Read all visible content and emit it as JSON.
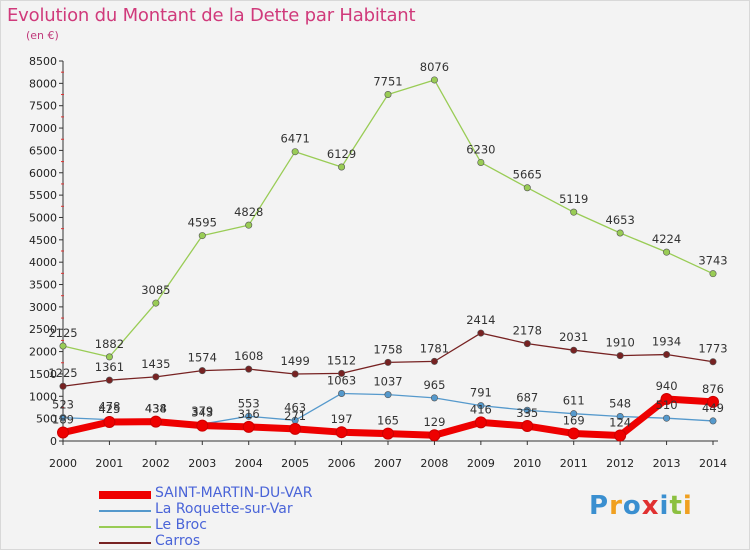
{
  "chart_data": {
    "type": "line",
    "title": "Evolution du Montant de la Dette par Habitant",
    "subtitle": "(en €)",
    "ylim": [
      0,
      8500
    ],
    "yticks": [
      0,
      500,
      1000,
      1500,
      2000,
      2500,
      3000,
      3500,
      4000,
      4500,
      5000,
      5500,
      6000,
      6500,
      7000,
      7500,
      8000,
      8500
    ],
    "x": [
      2000,
      2001,
      2002,
      2003,
      2004,
      2005,
      2006,
      2007,
      2008,
      2009,
      2010,
      2011,
      2012,
      2013,
      2014
    ],
    "grid": false,
    "legend_position": "bottom-left",
    "series": [
      {
        "name": "SAINT-MARTIN-DU-VAR",
        "color": "#ee0000",
        "values": [
          189,
          425,
          434,
          343,
          316,
          271,
          197,
          165,
          129,
          416,
          335,
          169,
          124,
          940,
          876
        ]
      },
      {
        "name": "La Roquette-sur-Var",
        "color": "#5599cc",
        "values": [
          523,
          478,
          438,
          379,
          553,
          463,
          1063,
          1037,
          965,
          791,
          687,
          611,
          548,
          510,
          449
        ]
      },
      {
        "name": "Le Broc",
        "color": "#99cc55",
        "values": [
          2125,
          1882,
          3085,
          4595,
          4828,
          6471,
          6129,
          7751,
          8076,
          6230,
          5665,
          5119,
          4653,
          4224,
          3743
        ]
      },
      {
        "name": "Carros",
        "color": "#772222",
        "values": [
          1225,
          1361,
          1435,
          1574,
          1608,
          1499,
          1512,
          1758,
          1781,
          2414,
          2178,
          2031,
          1910,
          1934,
          1773
        ]
      }
    ]
  },
  "legend": {
    "items": [
      {
        "label": "SAINT-MARTIN-DU-VAR"
      },
      {
        "label": "La Roquette-sur-Var"
      },
      {
        "label": "Le Broc"
      },
      {
        "label": "Carros"
      }
    ]
  },
  "logo": {
    "text": "Proxiti"
  }
}
